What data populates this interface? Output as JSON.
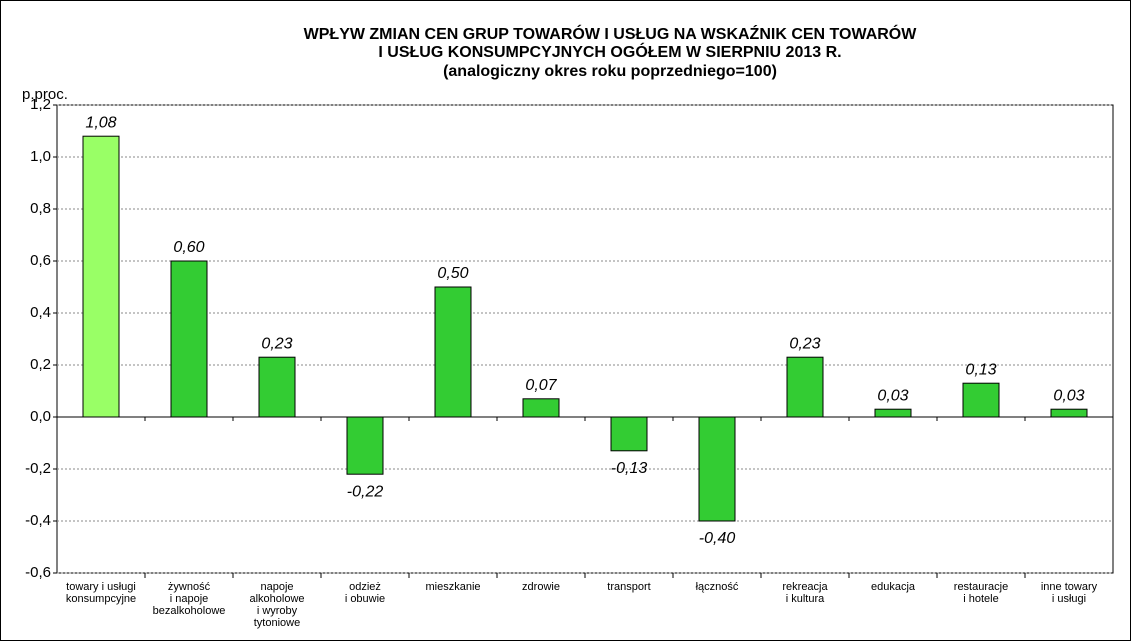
{
  "chart_data": {
    "type": "bar",
    "title": [
      "WPŁYW ZMIAN CEN GRUP TOWARÓW I USŁUG NA WSKAŹNIK CEN TOWARÓW",
      "I USŁUG KONSUMPCYJNYCH OGÓŁEM W SIERPNIU 2013 R.",
      "(analogiczny okres roku poprzedniego=100)"
    ],
    "y_label": "p.proc.",
    "categories": [
      "towary i usługi\nkonsumpcyjne",
      "żywność\ni napoje\nbezalkoholowe",
      "napoje\nalkoholowe\ni wyroby\ntytoniowe",
      "odzież\ni obuwie",
      "mieszkanie",
      "zdrowie",
      "transport",
      "łączność",
      "rekreacja\ni kultura",
      "edukacja",
      "restauracje\ni hotele",
      "inne towary\ni usługi"
    ],
    "values": [
      1.08,
      0.6,
      0.23,
      -0.22,
      0.5,
      0.07,
      -0.13,
      -0.4,
      0.23,
      0.03,
      0.13,
      0.03
    ],
    "value_labels": [
      "1,08",
      "0,60",
      "0,23",
      "-0,22",
      "0,50",
      "0,07",
      "-0,13",
      "-0,40",
      "0,23",
      "0,03",
      "0,13",
      "0,03"
    ],
    "colors": [
      "#99ff66",
      "#33cc33",
      "#33cc33",
      "#33cc33",
      "#33cc33",
      "#33cc33",
      "#33cc33",
      "#33cc33",
      "#33cc33",
      "#33cc33",
      "#33cc33",
      "#33cc33"
    ],
    "ylim": [
      -0.6,
      1.2
    ],
    "yticks": [
      {
        "value": -0.6,
        "label": "-0,6"
      },
      {
        "value": -0.4,
        "label": "-0,4"
      },
      {
        "value": -0.2,
        "label": "-0,2"
      },
      {
        "value": 0,
        "label": "0,0"
      },
      {
        "value": 0.2,
        "label": "0,2"
      },
      {
        "value": 0.4,
        "label": "0,4"
      },
      {
        "value": 0.6,
        "label": "0,6"
      },
      {
        "value": 0.8,
        "label": "0,8"
      },
      {
        "value": 1.0,
        "label": "1,0"
      },
      {
        "value": 1.2,
        "label": "1,2"
      }
    ],
    "grid": true
  }
}
